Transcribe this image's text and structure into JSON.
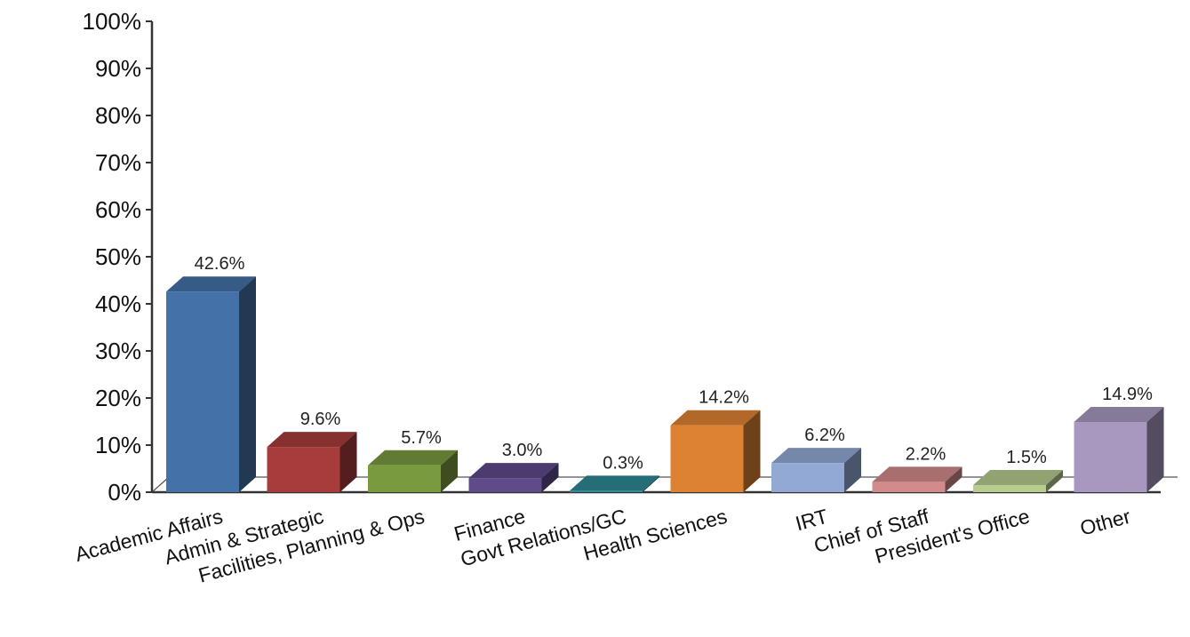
{
  "chart_data": {
    "type": "bar",
    "title": "",
    "xlabel": "",
    "ylabel": "",
    "ylim": [
      0,
      100
    ],
    "yticks": [
      0,
      10,
      20,
      30,
      40,
      50,
      60,
      70,
      80,
      90,
      100
    ],
    "ytick_labels": [
      "0%",
      "10%",
      "20%",
      "30%",
      "40%",
      "50%",
      "60%",
      "70%",
      "80%",
      "90%",
      "100%"
    ],
    "grid": false,
    "legend": "none",
    "categories": [
      "Academic Affairs",
      "Admin & Strategic",
      "Facilities, Planning & Ops",
      "Finance",
      "Govt Relations/GC",
      "Health Sciences",
      "IRT",
      "Chief of Staff",
      "President's Office",
      "Other"
    ],
    "values": [
      42.6,
      9.6,
      5.7,
      3.0,
      0.3,
      14.2,
      6.2,
      2.2,
      1.5,
      14.9
    ],
    "value_labels": [
      "42.6%",
      "9.6%",
      "5.7%",
      "3.0%",
      "0.3%",
      "14.2%",
      "6.2%",
      "2.2%",
      "1.5%",
      "14.9%"
    ],
    "colors": [
      "#4472a8",
      "#a83c3c",
      "#7a9a3e",
      "#5f4a8a",
      "#2e8a96",
      "#dd8232",
      "#92a9d6",
      "#d38a8a",
      "#b7cc8f",
      "#a898c0"
    ]
  }
}
